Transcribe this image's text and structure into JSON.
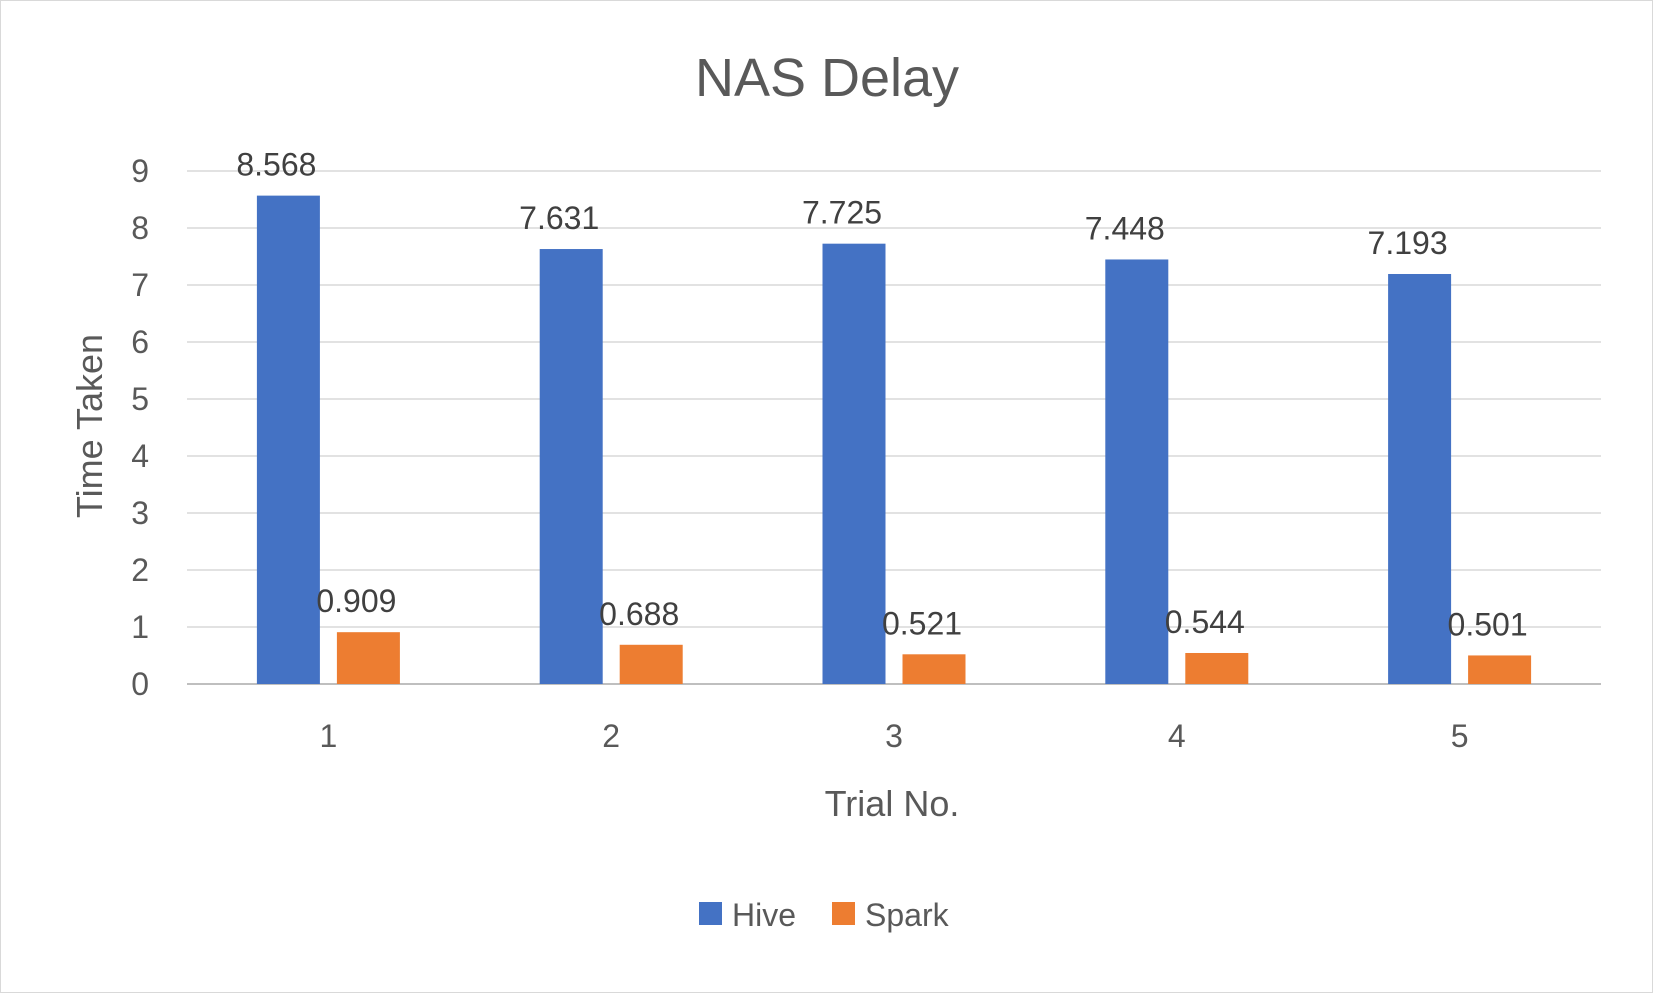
{
  "chart_data": {
    "type": "bar",
    "title": "NAS Delay",
    "xlabel": "Trial No.",
    "ylabel": "Time Taken",
    "categories": [
      "1",
      "2",
      "3",
      "4",
      "5"
    ],
    "series": [
      {
        "name": "Hive",
        "color": "#4472c4",
        "values": [
          8.568,
          7.631,
          7.725,
          7.448,
          7.193
        ],
        "labels": [
          "8.568",
          "7.631",
          "7.725",
          "7.448",
          "7.193"
        ]
      },
      {
        "name": "Spark",
        "color": "#ed7d31",
        "values": [
          0.909,
          0.688,
          0.521,
          0.544,
          0.501
        ],
        "labels": [
          "0.909",
          "0.688",
          "0.521",
          "0.544",
          "0.501"
        ]
      }
    ],
    "ylim": [
      0,
      9
    ],
    "yticks": [
      "0",
      "1",
      "2",
      "3",
      "4",
      "5",
      "6",
      "7",
      "8",
      "9"
    ],
    "grid": true,
    "legend_position": "bottom"
  }
}
